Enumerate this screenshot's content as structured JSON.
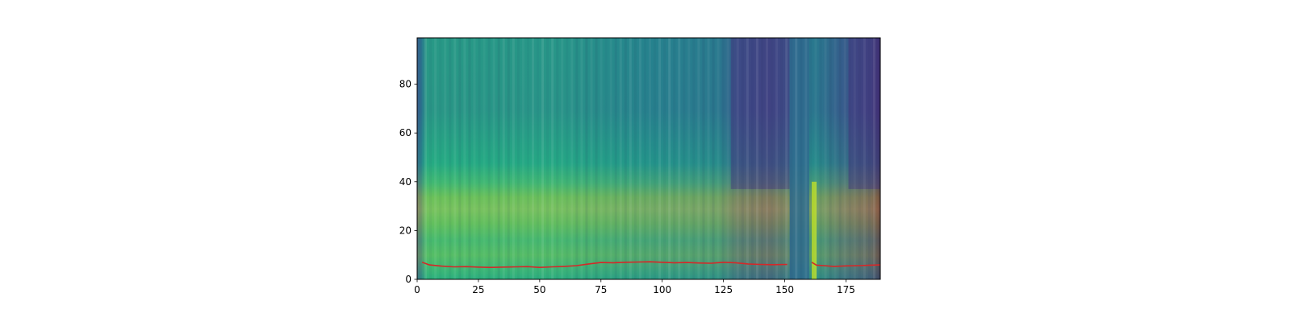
{
  "chart_data": {
    "type": "heatmap",
    "title": "",
    "xlabel": "",
    "ylabel": "",
    "xlim": [
      0,
      189
    ],
    "ylim": [
      0,
      99
    ],
    "xticks": [
      0,
      25,
      50,
      75,
      100,
      125,
      150,
      175
    ],
    "yticks": [
      0,
      20,
      40,
      60,
      80
    ],
    "colormap": "viridis",
    "grid": false,
    "heatmap_description": {
      "low_band_rows": [
        0,
        37
      ],
      "bright_band_rows": [
        24,
        36
      ],
      "dark_regions_x": [
        [
          128,
          152
        ],
        [
          176,
          189
        ]
      ],
      "gap_columns": [
        [
          152,
          160
        ]
      ]
    },
    "series": [
      {
        "line_color": "#d62728",
        "segments": [
          {
            "x": [
              2,
              5,
              10,
              15,
              20,
              25,
              30,
              35,
              40,
              45,
              50,
              55,
              60,
              65,
              70,
              75,
              80,
              85,
              90,
              95,
              100,
              105,
              110,
              115,
              120,
              125,
              130,
              135,
              140,
              145,
              151
            ],
            "y": [
              7.0,
              5.9,
              5.4,
              5.1,
              5.2,
              5.0,
              4.9,
              5.0,
              5.1,
              5.2,
              4.9,
              5.1,
              5.3,
              5.6,
              6.3,
              6.9,
              6.8,
              7.0,
              7.1,
              7.2,
              7.0,
              6.8,
              6.9,
              6.7,
              6.6,
              7.0,
              6.8,
              6.3,
              6.1,
              6.0,
              6.1
            ]
          },
          {
            "x": [
              161,
              163,
              166,
              170,
              175,
              180,
              185,
              189
            ],
            "y": [
              7.0,
              5.8,
              5.6,
              5.3,
              5.5,
              5.6,
              5.8,
              5.9
            ]
          }
        ]
      }
    ]
  },
  "colors": {
    "line": "#d62728",
    "axes": "#000000",
    "background": "#ffffff"
  }
}
